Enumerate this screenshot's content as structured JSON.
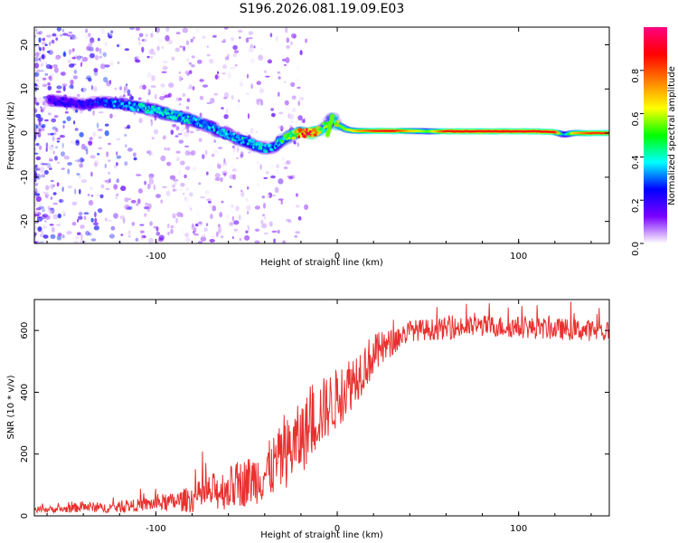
{
  "title": "S196.2026.081.19.09.E03",
  "chart_data": [
    {
      "type": "heatmap",
      "panel": "spectrogram",
      "xlabel": "Height of straight line (km)",
      "ylabel": "Frequency (Hz)",
      "xlim": [
        -167,
        150
      ],
      "ylim": [
        -25,
        24
      ],
      "xticks": [
        "-100",
        "0",
        "100"
      ],
      "xtick_values": [
        -100,
        0,
        100
      ],
      "yticks": [
        "20",
        "10",
        "0",
        "-10",
        "-20"
      ],
      "ytick_values": [
        20,
        10,
        0,
        -10,
        -20
      ],
      "colorbar": {
        "label": "Normalized spectral amplitude",
        "range": [
          0,
          1
        ],
        "ticks": [
          "0.0",
          "0.2",
          "0.4",
          "0.6",
          "0.8"
        ],
        "tick_values": [
          0.0,
          0.2,
          0.4,
          0.6,
          0.8
        ],
        "colormap": [
          "#ffffff",
          "#7a00ff",
          "#0000ff",
          "#00ffff",
          "#00ff00",
          "#ffff00",
          "#ff8000",
          "#ff0000",
          "#ff0080"
        ]
      },
      "ridge": {
        "x": [
          -160,
          -150,
          -140,
          -130,
          -120,
          -110,
          -100,
          -90,
          -80,
          -70,
          -60,
          -50,
          -40,
          -35,
          -30,
          -25,
          -20,
          -15,
          -10,
          -5,
          -3,
          0,
          5,
          10,
          20,
          30,
          40,
          50,
          60,
          80,
          100,
          110,
          120,
          125,
          130,
          140,
          150
        ],
        "freq_hz": [
          7.5,
          7.0,
          6.5,
          7.0,
          6.5,
          6.0,
          5.0,
          4.0,
          3.0,
          1.5,
          -0.5,
          -2.0,
          -3.5,
          -3.0,
          -1.5,
          -0.5,
          0.0,
          0.0,
          0.5,
          2.0,
          3.5,
          2.0,
          0.8,
          0.5,
          0.5,
          0.5,
          0.5,
          0.4,
          0.4,
          0.4,
          0.4,
          0.4,
          0.2,
          -0.4,
          0.0,
          0.0,
          0.0
        ],
        "amplitude": [
          0.15,
          0.2,
          0.2,
          0.25,
          0.3,
          0.35,
          0.35,
          0.4,
          0.35,
          0.3,
          0.35,
          0.35,
          0.35,
          0.3,
          0.45,
          0.5,
          0.85,
          0.8,
          0.7,
          0.4,
          0.45,
          0.55,
          0.6,
          0.7,
          0.85,
          0.9,
          0.7,
          0.55,
          0.9,
          0.9,
          0.9,
          0.9,
          0.9,
          0.3,
          0.7,
          0.85,
          0.85
        ]
      }
    },
    {
      "type": "line",
      "panel": "snr",
      "xlabel": "Height of straight line (km)",
      "ylabel": "SNR (10 * v/v)",
      "xlim": [
        -167,
        150
      ],
      "ylim": [
        0,
        700
      ],
      "xticks": [
        "-100",
        "0",
        "100"
      ],
      "xtick_values": [
        -100,
        0,
        100
      ],
      "yticks": [
        "0",
        "200",
        "400",
        "600"
      ],
      "ytick_values": [
        0,
        200,
        400,
        600
      ],
      "series": [
        {
          "name": "SNR",
          "color": "#e8312f",
          "trend_x": [
            -167,
            -150,
            -140,
            -130,
            -120,
            -110,
            -100,
            -90,
            -80,
            -70,
            -60,
            -50,
            -40,
            -30,
            -20,
            -10,
            0,
            10,
            20,
            30,
            40,
            60,
            80,
            100,
            120,
            140,
            150
          ],
          "trend_y": [
            20,
            22,
            30,
            25,
            28,
            35,
            40,
            45,
            55,
            75,
            90,
            110,
            135,
            190,
            250,
            330,
            380,
            450,
            520,
            560,
            600,
            605,
            615,
            610,
            605,
            600,
            595
          ],
          "noise_amplitude": [
            10,
            12,
            18,
            15,
            18,
            20,
            25,
            30,
            45,
            60,
            70,
            80,
            90,
            110,
            120,
            110,
            100,
            90,
            70,
            45,
            35,
            35,
            35,
            35,
            35,
            35,
            35
          ]
        }
      ]
    }
  ]
}
